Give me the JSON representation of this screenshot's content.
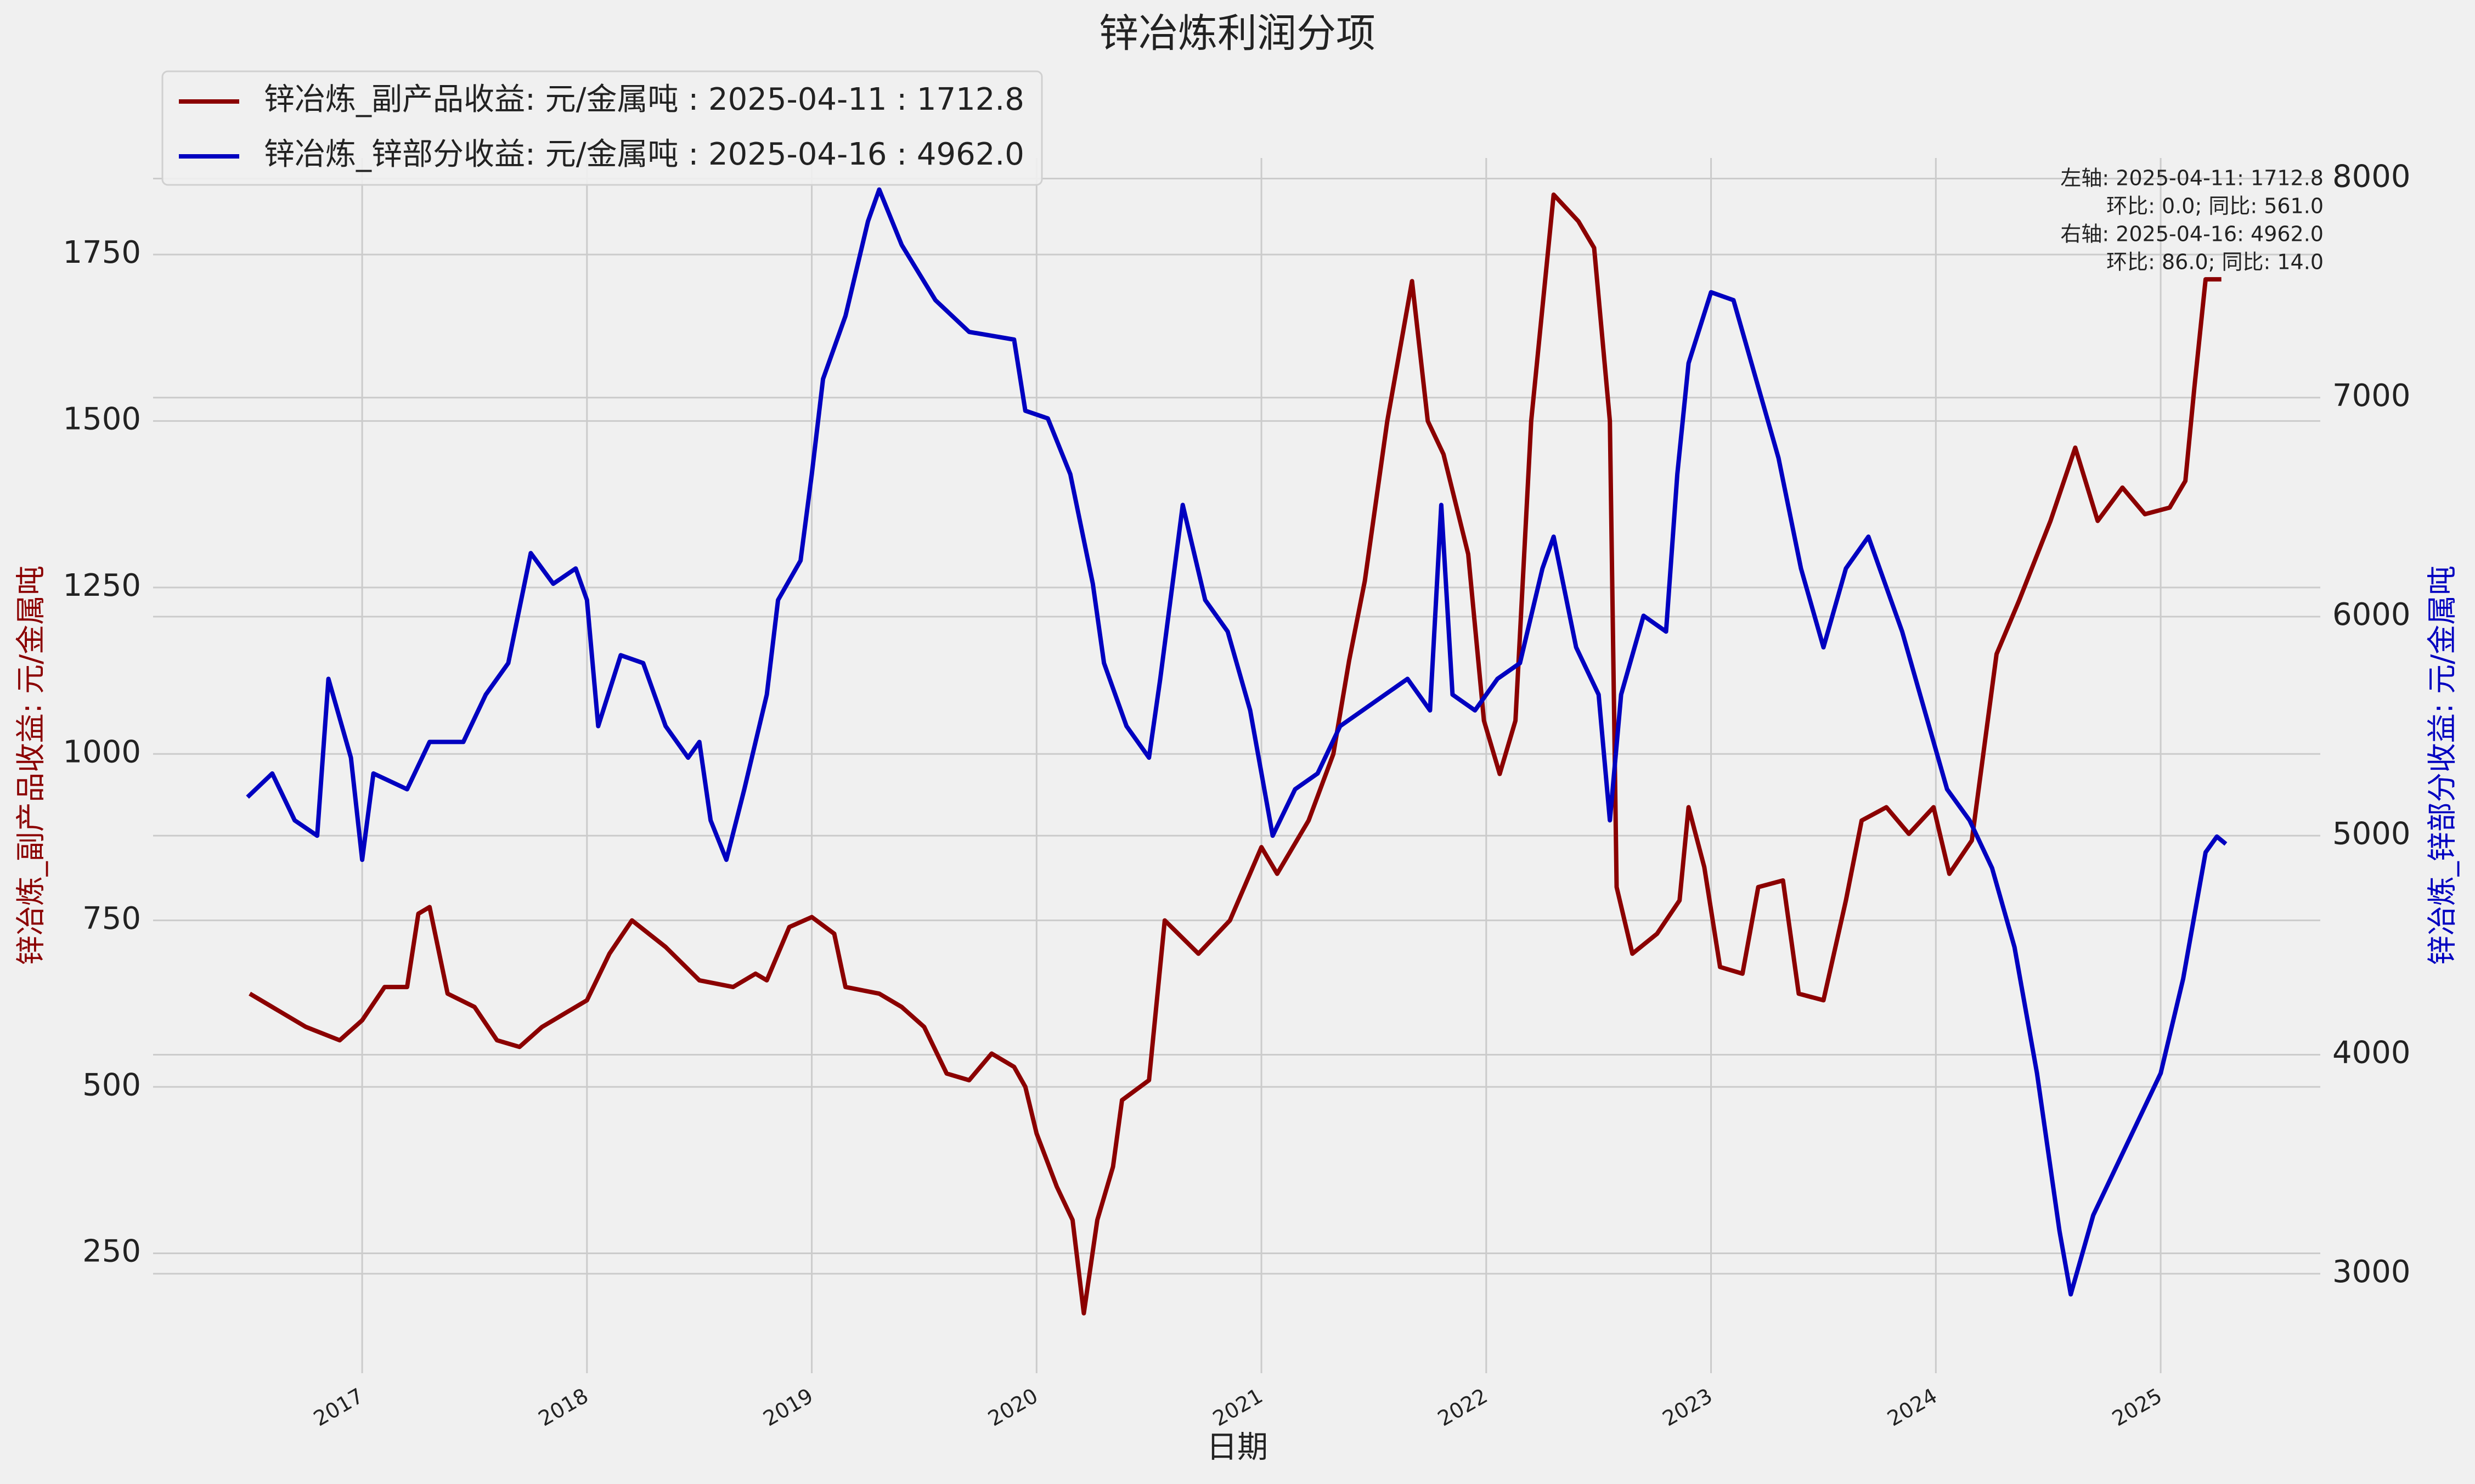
{
  "chart_data": {
    "type": "line",
    "title": "锌冶炼利润分项",
    "x_label": "日期",
    "y_label": "锌冶炼_副产品收益: 元/金属吨",
    "y2_label": "锌冶炼_锌部分收益: 元/金属吨",
    "xlim": [
      2016.07,
      2025.71
    ],
    "xticks": [
      2017,
      2018,
      2019,
      2020,
      2021,
      2022,
      2023,
      2024,
      2025
    ],
    "ylim": [
      70,
      1895
    ],
    "yticks": [
      250,
      500,
      750,
      1000,
      1250,
      1500,
      1750
    ],
    "y2lim": [
      2546,
      8094
    ],
    "y2ticks": [
      3000,
      4000,
      5000,
      6000,
      7000,
      8000
    ],
    "grid": true,
    "legend": "upper-left",
    "annotations": [
      "左轴:  2025-04-11: 1712.8",
      "环比: 0.0; 同比: 561.0",
      "右轴:  2025-04-16: 4962.0",
      "环比: 86.0; 同比: 14.0"
    ],
    "series": [
      {
        "name": "锌冶炼_副产品收益: 元/金属吨 : 2025-04-11 : 1712.8",
        "color": "#8b0000",
        "axis": "y",
        "x": [
          2016.5,
          2016.6,
          2016.75,
          2016.9,
          2017.0,
          2017.1,
          2017.2,
          2017.25,
          2017.3,
          2017.38,
          2017.5,
          2017.6,
          2017.7,
          2017.8,
          2017.9,
          2018.0,
          2018.1,
          2018.2,
          2018.35,
          2018.5,
          2018.65,
          2018.75,
          2018.8,
          2018.9,
          2019.0,
          2019.1,
          2019.15,
          2019.3,
          2019.4,
          2019.5,
          2019.6,
          2019.7,
          2019.8,
          2019.9,
          2019.95,
          2020.0,
          2020.09,
          2020.16,
          2020.21,
          2020.27,
          2020.34,
          2020.38,
          2020.5,
          2020.57,
          2020.72,
          2020.86,
          2021.0,
          2021.07,
          2021.21,
          2021.32,
          2021.39,
          2021.46,
          2021.56,
          2021.67,
          2021.74,
          2021.81,
          2021.92,
          2021.99,
          2022.06,
          2022.13,
          2022.2,
          2022.3,
          2022.41,
          2022.48,
          2022.55,
          2022.58,
          2022.65,
          2022.76,
          2022.86,
          2022.9,
          2022.97,
          2023.04,
          2023.14,
          2023.21,
          2023.32,
          2023.39,
          2023.5,
          2023.6,
          2023.67,
          2023.78,
          2023.88,
          2023.99,
          2024.06,
          2024.16,
          2024.27,
          2024.37,
          2024.51,
          2024.62,
          2024.72,
          2024.83,
          2024.93,
          2025.04,
          2025.11,
          2025.15,
          2025.2,
          2025.27
        ],
        "values": [
          640,
          620,
          590,
          570,
          600,
          650,
          650,
          760,
          770,
          640,
          620,
          570,
          560,
          590,
          610,
          630,
          700,
          750,
          710,
          660,
          650,
          670,
          660,
          740,
          755,
          730,
          650,
          640,
          620,
          590,
          520,
          510,
          550,
          530,
          500,
          430,
          350,
          300,
          160,
          300,
          380,
          480,
          510,
          750,
          700,
          750,
          860,
          820,
          900,
          1000,
          1140,
          1260,
          1500,
          1710,
          1500,
          1450,
          1300,
          1050,
          970,
          1050,
          1500,
          1840,
          1800,
          1760,
          1500,
          800,
          700,
          730,
          780,
          920,
          830,
          680,
          670,
          800,
          810,
          640,
          630,
          780,
          900,
          920,
          880,
          920,
          820,
          870,
          1150,
          1230,
          1350,
          1460,
          1350,
          1400,
          1360,
          1370,
          1410,
          1550,
          1712.8,
          1712.8
        ]
      },
      {
        "name": "锌冶炼_锌部分收益: 元/金属吨 : 2025-04-16 : 4962.0",
        "color": "#0000c0",
        "axis": "y2",
        "x": [
          2016.49,
          2016.6,
          2016.7,
          2016.8,
          2016.85,
          2016.95,
          2017.0,
          2017.05,
          2017.2,
          2017.3,
          2017.45,
          2017.55,
          2017.65,
          2017.75,
          2017.85,
          2017.95,
          2018.0,
          2018.05,
          2018.15,
          2018.25,
          2018.35,
          2018.45,
          2018.5,
          2018.55,
          2018.62,
          2018.7,
          2018.8,
          2018.85,
          2018.95,
          2019.0,
          2019.05,
          2019.15,
          2019.25,
          2019.3,
          2019.4,
          2019.55,
          2019.7,
          2019.9,
          2019.95,
          2020.05,
          2020.15,
          2020.25,
          2020.3,
          2020.4,
          2020.5,
          2020.55,
          2020.65,
          2020.75,
          2020.85,
          2020.95,
          2021.05,
          2021.15,
          2021.25,
          2021.35,
          2021.45,
          2021.55,
          2021.65,
          2021.75,
          2021.8,
          2021.85,
          2021.95,
          2022.05,
          2022.15,
          2022.25,
          2022.3,
          2022.4,
          2022.5,
          2022.55,
          2022.6,
          2022.7,
          2022.8,
          2022.85,
          2022.9,
          2023.0,
          2023.1,
          2023.2,
          2023.3,
          2023.4,
          2023.5,
          2023.6,
          2023.7,
          2023.75,
          2023.85,
          2023.95,
          2024.05,
          2024.15,
          2024.25,
          2024.35,
          2024.45,
          2024.55,
          2024.6,
          2024.7,
          2024.8,
          2024.9,
          2025.0,
          2025.1,
          2025.15,
          2025.2,
          2025.25,
          2025.29
        ],
        "values": [
          5176,
          5284,
          5070,
          5000,
          5716,
          5356,
          4890,
          5284,
          5212,
          5428,
          5428,
          5644,
          5788,
          6290,
          6150,
          6220,
          6076,
          5500,
          5824,
          5788,
          5500,
          5356,
          5428,
          5070,
          4890,
          5212,
          5644,
          6076,
          6256,
          6650,
          7085,
          7373,
          7805,
          7950,
          7697,
          7445,
          7300,
          7265,
          6940,
          6905,
          6650,
          6150,
          5788,
          5500,
          5356,
          5716,
          6510,
          6076,
          5932,
          5572,
          5000,
          5212,
          5284,
          5500,
          5572,
          5644,
          5716,
          5572,
          6510,
          5644,
          5572,
          5716,
          5788,
          6220,
          6365,
          5860,
          5644,
          5070,
          5644,
          6004,
          5932,
          6650,
          7157,
          7481,
          7445,
          7085,
          6725,
          6220,
          5860,
          6220,
          6365,
          6220,
          5932,
          5572,
          5212,
          5070,
          4852,
          4491,
          3915,
          3195,
          2906,
          3267,
          3483,
          3699,
          3915,
          4347,
          4635,
          4924,
          4996,
          4962.0
        ]
      }
    ]
  }
}
